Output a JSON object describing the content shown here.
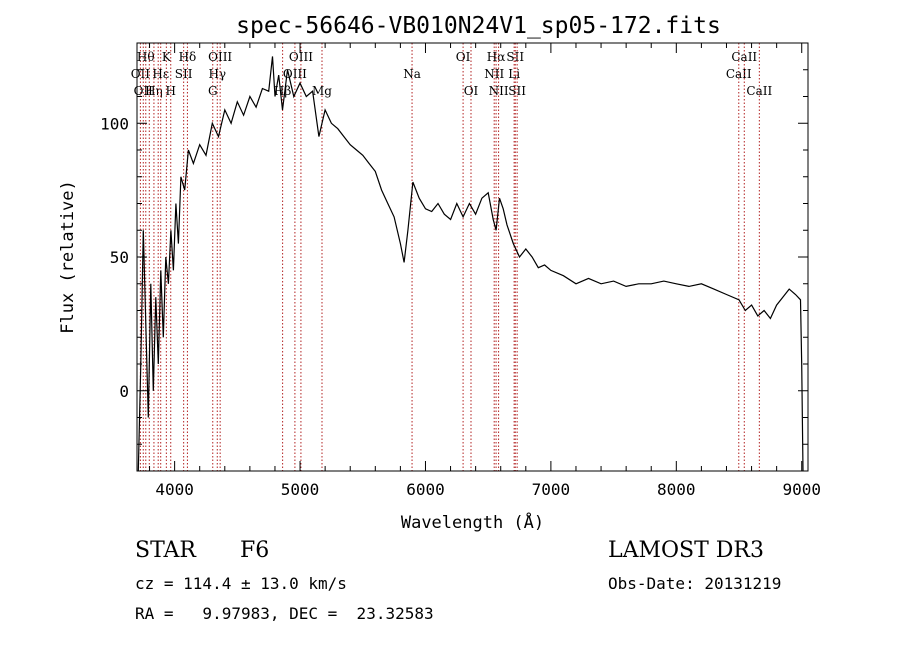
{
  "chart_data": {
    "type": "line",
    "title": "spec-56646-VB010N24V1_sp05-172.fits",
    "xlabel": "Wavelength (Å)",
    "ylabel": "Flux (relative)",
    "xlim": [
      3700,
      9050
    ],
    "ylim": [
      -30,
      130
    ],
    "xticks": [
      4000,
      5000,
      6000,
      7000,
      8000,
      9000
    ],
    "yticks": [
      0,
      50,
      100
    ],
    "grid": false,
    "line_color": "#000000",
    "line_marker_color": "#b22222",
    "series": [
      {
        "x": [
          3710,
          3730,
          3750,
          3770,
          3790,
          3810,
          3830,
          3850,
          3870,
          3890,
          3910,
          3930,
          3950,
          3970,
          3990,
          4010,
          4030,
          4050,
          4080,
          4110,
          4150,
          4200,
          4250,
          4300,
          4350,
          4400,
          4450,
          4500,
          4550,
          4600,
          4650,
          4700,
          4750,
          4780,
          4800,
          4830,
          4860,
          4900,
          4950,
          5000,
          5050,
          5100,
          5150,
          5200,
          5250,
          5300,
          5350,
          5400,
          5450,
          5500,
          5550,
          5600,
          5650,
          5700,
          5750,
          5800,
          5830,
          5860,
          5900,
          5950,
          6000,
          6050,
          6100,
          6150,
          6200,
          6250,
          6300,
          6350,
          6400,
          6450,
          6500,
          6540,
          6563,
          6590,
          6620,
          6650,
          6700,
          6750,
          6800,
          6850,
          6900,
          6950,
          7000,
          7100,
          7200,
          7300,
          7400,
          7500,
          7600,
          7700,
          7800,
          7900,
          8000,
          8100,
          8200,
          8300,
          8400,
          8500,
          8550,
          8600,
          8650,
          8700,
          8750,
          8800,
          8850,
          8900,
          8950,
          8990,
          9000,
          9010
        ],
        "y": [
          -30,
          10,
          60,
          25,
          -10,
          40,
          0,
          35,
          10,
          45,
          20,
          50,
          40,
          60,
          45,
          70,
          55,
          80,
          75,
          90,
          85,
          92,
          88,
          100,
          95,
          105,
          100,
          108,
          103,
          110,
          106,
          113,
          112,
          125,
          110,
          118,
          105,
          120,
          110,
          115,
          110,
          112,
          95,
          105,
          100,
          98,
          95,
          92,
          90,
          88,
          85,
          82,
          75,
          70,
          65,
          55,
          48,
          60,
          78,
          72,
          68,
          67,
          70,
          66,
          64,
          70,
          65,
          70,
          66,
          72,
          74,
          64,
          60,
          72,
          68,
          62,
          55,
          50,
          53,
          50,
          46,
          47,
          45,
          43,
          40,
          42,
          40,
          41,
          39,
          40,
          40,
          41,
          40,
          39,
          40,
          38,
          36,
          34,
          30,
          32,
          28,
          30,
          27,
          32,
          35,
          38,
          36,
          34,
          10,
          -30
        ]
      }
    ],
    "lines": [
      {
        "x": 3727,
        "labels": [
          "OII"
        ],
        "row": 1
      },
      {
        "x": 3750,
        "labels": [
          "OII"
        ],
        "row": 2
      },
      {
        "x": 3770,
        "labels": [
          "Hθ"
        ],
        "row": 0
      },
      {
        "x": 3798,
        "labels": [],
        "row": -1
      },
      {
        "x": 3835,
        "labels": [
          "Hη"
        ],
        "row": 2
      },
      {
        "x": 3869,
        "labels": [],
        "row": -1
      },
      {
        "x": 3889,
        "labels": [
          "Hε"
        ],
        "row": 1
      },
      {
        "x": 3934,
        "labels": [
          "K"
        ],
        "row": 0
      },
      {
        "x": 3969,
        "labels": [
          "H"
        ],
        "row": 2
      },
      {
        "x": 4072,
        "labels": [
          "SII"
        ],
        "row": 1
      },
      {
        "x": 4102,
        "labels": [
          "Hδ"
        ],
        "row": 0
      },
      {
        "x": 4304,
        "labels": [
          "G"
        ],
        "row": 2
      },
      {
        "x": 4340,
        "labels": [
          "Hγ"
        ],
        "row": 1
      },
      {
        "x": 4363,
        "labels": [
          "OIII"
        ],
        "row": 0
      },
      {
        "x": 4861,
        "labels": [
          "Hβ"
        ],
        "row": 2
      },
      {
        "x": 4959,
        "labels": [
          "OIII"
        ],
        "row": 1
      },
      {
        "x": 5007,
        "labels": [
          "OIII"
        ],
        "row": 0
      },
      {
        "x": 5175,
        "labels": [
          "Mg"
        ],
        "row": 2
      },
      {
        "x": 5893,
        "labels": [
          "Na"
        ],
        "row": 1
      },
      {
        "x": 6300,
        "labels": [
          "OI"
        ],
        "row": 0
      },
      {
        "x": 6363,
        "labels": [
          "OI"
        ],
        "row": 2
      },
      {
        "x": 6548,
        "labels": [
          "NII"
        ],
        "row": 1
      },
      {
        "x": 6563,
        "labels": [
          "Hα"
        ],
        "row": 0
      },
      {
        "x": 6583,
        "labels": [
          "NII"
        ],
        "row": 2
      },
      {
        "x": 6707,
        "labels": [
          "Li"
        ],
        "row": 1
      },
      {
        "x": 6716,
        "labels": [
          "SII"
        ],
        "row": 0
      },
      {
        "x": 6731,
        "labels": [
          "SII"
        ],
        "row": 2
      },
      {
        "x": 8498,
        "labels": [
          "CaII"
        ],
        "row": 1
      },
      {
        "x": 8542,
        "labels": [
          "CaII"
        ],
        "row": 0
      },
      {
        "x": 8662,
        "labels": [
          "CaII"
        ],
        "row": 2
      }
    ]
  },
  "info": {
    "class_label": "STAR",
    "subclass": "F6",
    "survey": "LAMOST DR3",
    "cz_line": "cz = 114.4 ± 13.0 km/s",
    "obs_date": "Obs-Date: 20131219",
    "radec": "RA =   9.97983, DEC =  23.32583"
  }
}
